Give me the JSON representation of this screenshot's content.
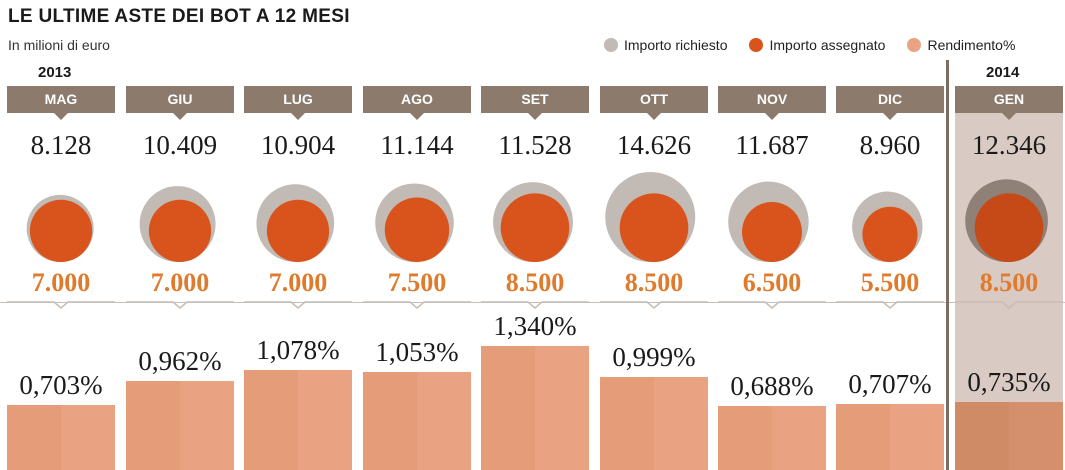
{
  "title": "LE ULTIME ASTE DEI BOT A 12 MESI",
  "subtitle": "In milioni di euro",
  "legend": [
    {
      "label": "Importo richiesto",
      "color": "#c2bab4"
    },
    {
      "label": "Importo assegnato",
      "color": "#d9531c"
    },
    {
      "label": "Rendimento%",
      "color": "#eaa382"
    }
  ],
  "years": {
    "first": "2013",
    "second": "2014"
  },
  "chart_data": {
    "type": "bar",
    "title": "LE ULTIME ASTE DEI BOT A 12 MESI",
    "subtitle": "In milioni di euro",
    "categories": [
      "MAG",
      "GIU",
      "LUG",
      "AGO",
      "SET",
      "OTT",
      "NOV",
      "DIC",
      "GEN"
    ],
    "series": [
      {
        "name": "Importo richiesto",
        "values": [
          8128,
          10409,
          10904,
          11144,
          11528,
          14626,
          11687,
          8960,
          12346
        ],
        "labels": [
          "8.128",
          "10.409",
          "10.904",
          "11.144",
          "11.528",
          "14.626",
          "11.687",
          "8.960",
          "12.346"
        ]
      },
      {
        "name": "Importo assegnato",
        "values": [
          7000,
          7000,
          7000,
          7500,
          8500,
          8500,
          6500,
          5500,
          8500
        ],
        "labels": [
          "7.000",
          "7.000",
          "7.000",
          "7.500",
          "8.500",
          "8.500",
          "6.500",
          "5.500",
          "8.500"
        ]
      },
      {
        "name": "Rendimento%",
        "values": [
          0.703,
          0.962,
          1.078,
          1.053,
          1.34,
          0.999,
          0.688,
          0.707,
          0.735
        ],
        "labels": [
          "0,703%",
          "0,962%",
          "1,078%",
          "1,053%",
          "1,340%",
          "0,999%",
          "0,688%",
          "0,707%",
          "0,735%"
        ]
      }
    ],
    "colors": {
      "requested": "#c2bab4",
      "assigned": "#d9531c",
      "assigned_highlight": "#c54a17",
      "rate": "#eaa382",
      "tab": "#8c7b6c",
      "highlight_bg": "#d9cbc3"
    },
    "highlight_category": "GEN",
    "ylim_rate": [
      0,
      1.4
    ]
  }
}
